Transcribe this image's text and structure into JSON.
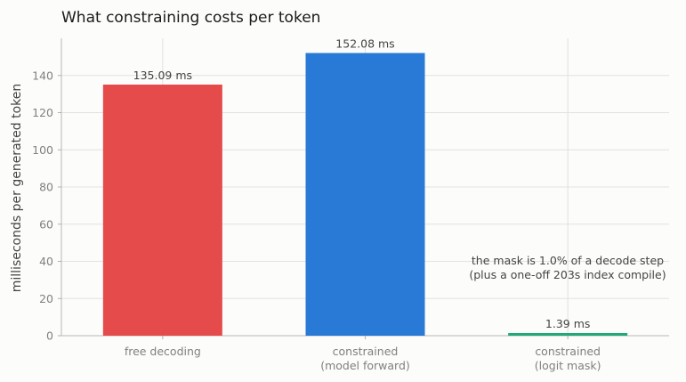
{
  "chart_data": {
    "type": "bar",
    "title": "What constraining costs per token",
    "xlabel": "",
    "ylabel": "milliseconds per generated token",
    "ylim": [
      0,
      160
    ],
    "yticks": [
      0,
      20,
      40,
      60,
      80,
      100,
      120,
      140
    ],
    "grid": true,
    "categories": [
      [
        "free decoding"
      ],
      [
        "constrained",
        "(model forward)"
      ],
      [
        "constrained",
        "(logit mask)"
      ]
    ],
    "values": [
      135.09,
      152.08,
      1.39
    ],
    "data_labels": [
      "135.09 ms",
      "152.08 ms",
      "1.39 ms"
    ],
    "colors": [
      "#e54b4b",
      "#2979d6",
      "#22a878"
    ],
    "annotation": [
      "the mask is 1.0% of a decode step",
      "(plus a one-off 203s index compile)"
    ]
  }
}
